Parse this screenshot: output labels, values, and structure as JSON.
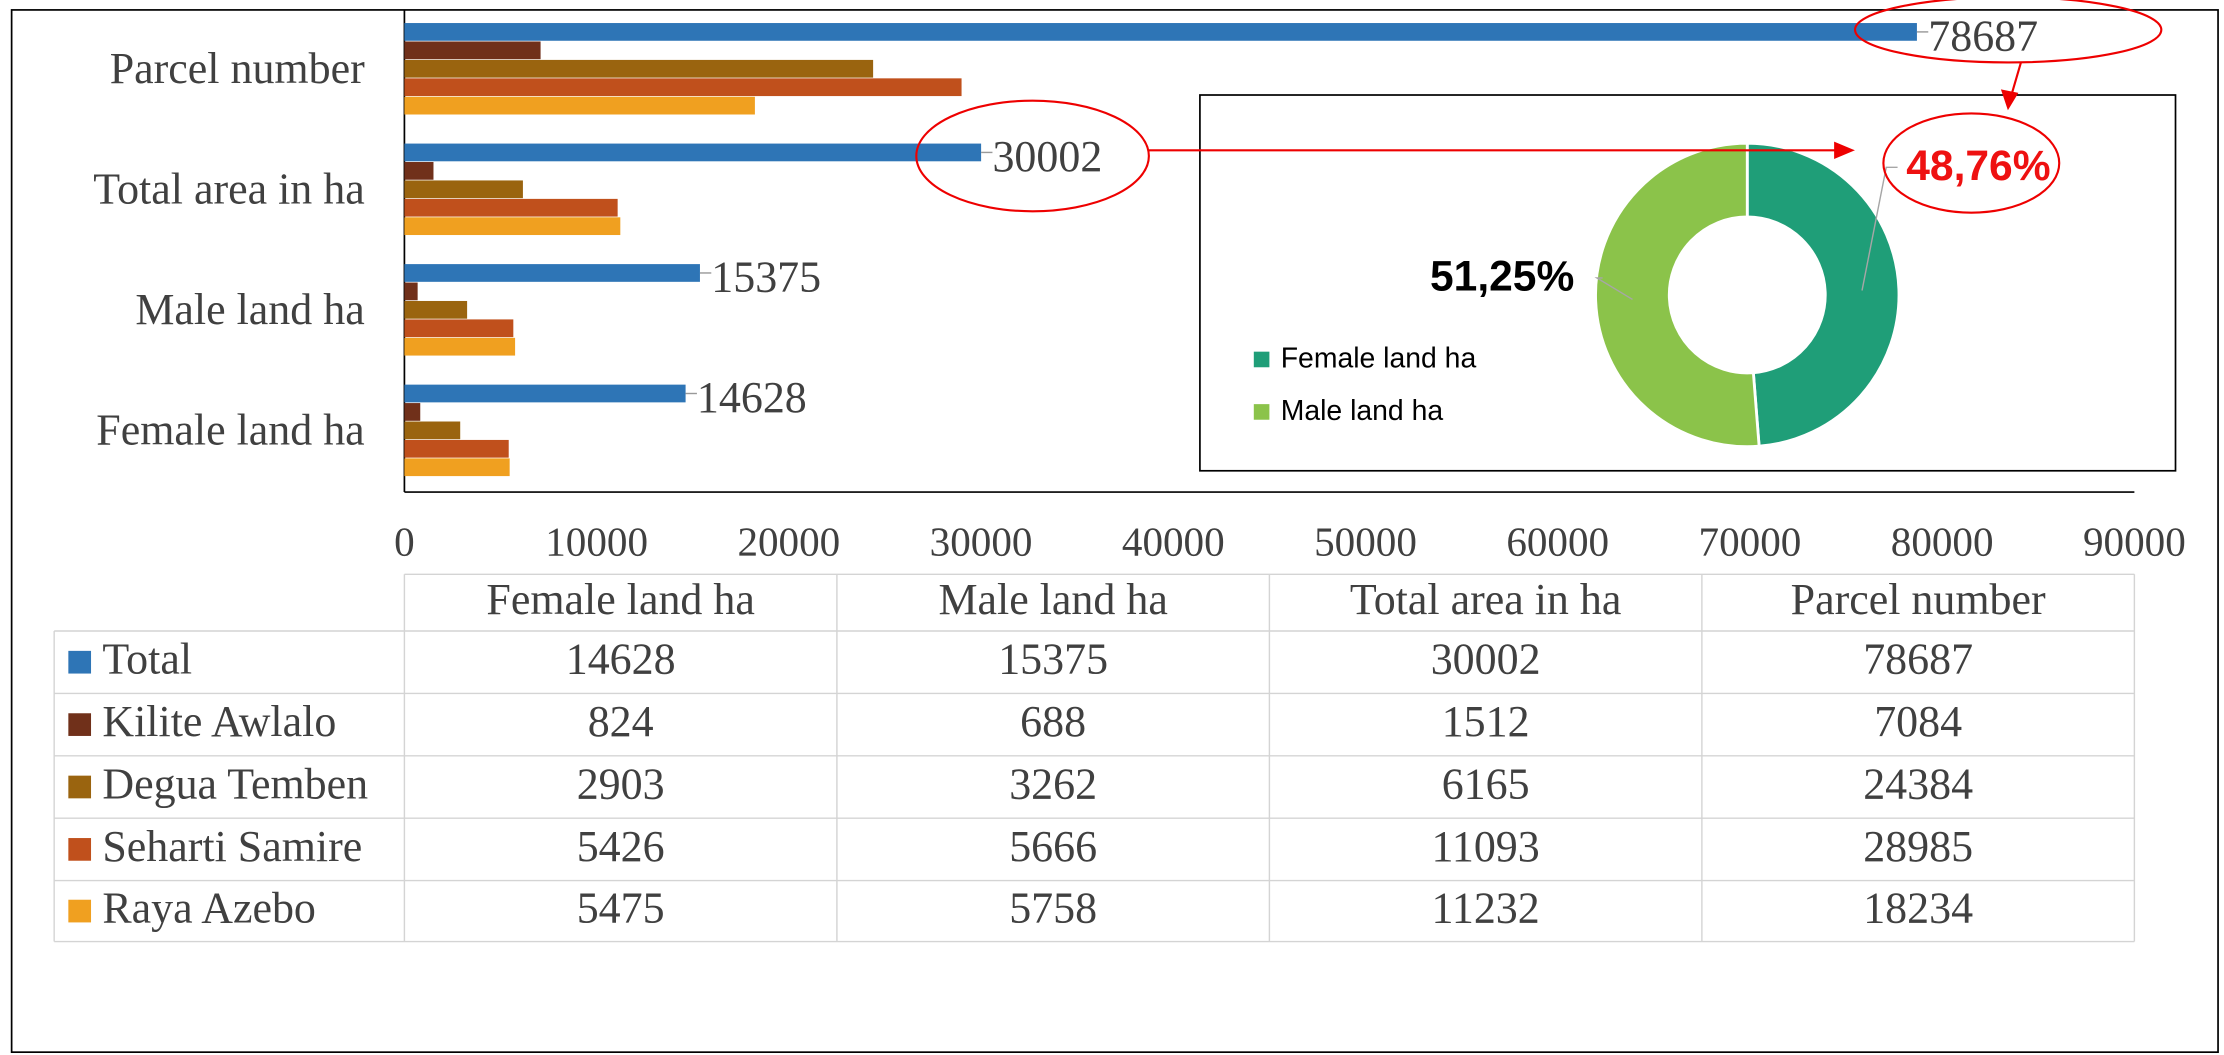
{
  "chart_data": [
    {
      "type": "bar",
      "orientation": "horizontal",
      "categories": [
        "Female land ha",
        "Male land ha",
        "Total area in ha",
        "Parcel number"
      ],
      "series": [
        {
          "name": "Total",
          "color": "#2e75b6",
          "values": [
            14628,
            15375,
            30002,
            78687
          ]
        },
        {
          "name": "Kilite Awlalo",
          "color": "#70301a",
          "values": [
            824,
            688,
            1512,
            7084
          ]
        },
        {
          "name": "Degua Temben",
          "color": "#9a640f",
          "values": [
            2903,
            3262,
            6165,
            24384
          ]
        },
        {
          "name": "Seharti Samire",
          "color": "#c0501c",
          "values": [
            5426,
            5666,
            11093,
            28985
          ]
        },
        {
          "name": "Raya Azebo",
          "color": "#f0a020",
          "values": [
            5475,
            5758,
            11232,
            18234
          ]
        }
      ],
      "xlim": [
        0,
        90000
      ],
      "xticks": [
        0,
        10000,
        20000,
        30000,
        40000,
        50000,
        60000,
        70000,
        80000,
        90000
      ],
      "data_labels_series": 0,
      "data_table": true
    },
    {
      "type": "pie",
      "donut": true,
      "categories": [
        "Female land ha",
        "Male land ha"
      ],
      "values": [
        48.76,
        51.25
      ],
      "value_labels": [
        "48,76%",
        "51,25%"
      ],
      "colors": [
        "#1f9e78",
        "#8bc34a"
      ],
      "label_colors": [
        "#ee1111",
        "#000000"
      ],
      "legend": "left"
    }
  ]
}
